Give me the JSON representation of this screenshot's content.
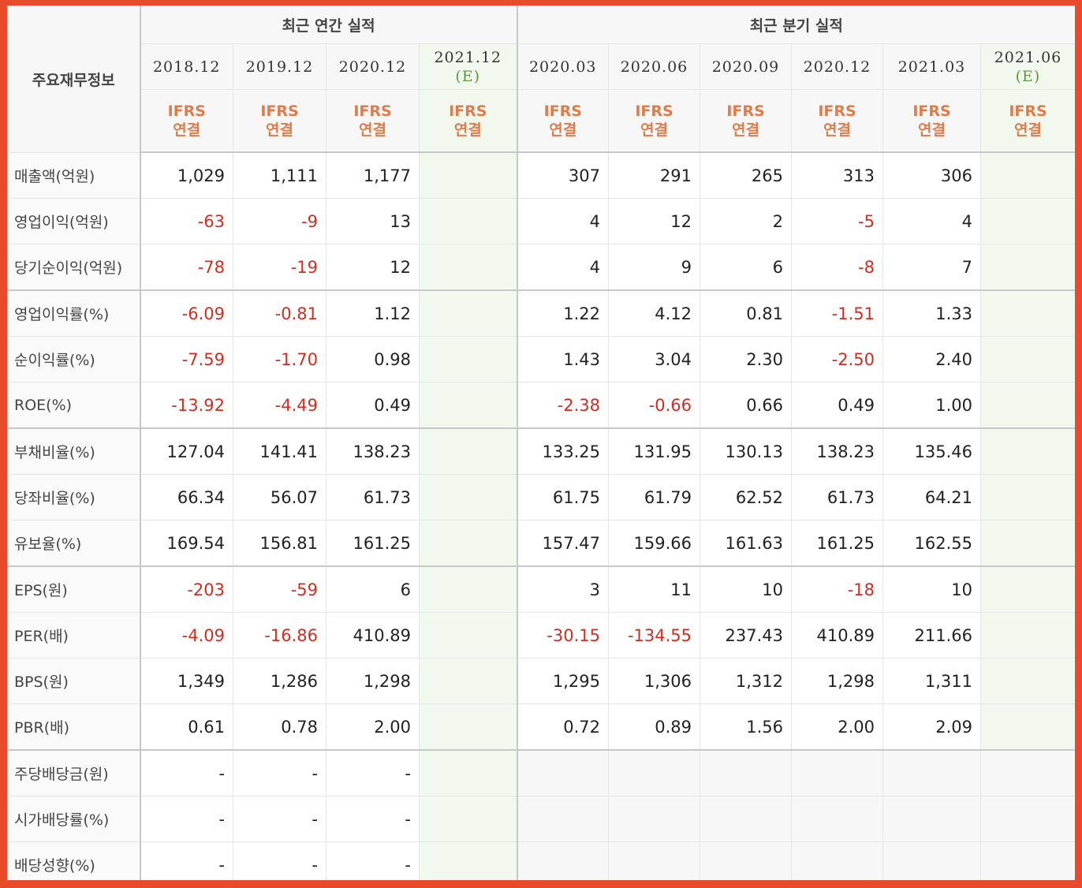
{
  "header": {
    "label": "주요재무정보",
    "annual_title": "최근 연간 실적",
    "quarterly_title": "최근 분기 실적",
    "ifrs_top": "IFRS",
    "ifrs_bottom": "연결",
    "estimate_mark": "(E)"
  },
  "annual_periods": [
    "2018.12",
    "2019.12",
    "2020.12",
    "2021.12"
  ],
  "quarterly_periods": [
    "2020.03",
    "2020.06",
    "2020.09",
    "2020.12",
    "2021.03",
    "2021.06"
  ],
  "rows": [
    {
      "label": "매출액(억원)",
      "annual": [
        "1,029",
        "1,111",
        "1,177",
        ""
      ],
      "quarterly": [
        "307",
        "291",
        "265",
        "313",
        "306",
        ""
      ]
    },
    {
      "label": "영업이익(억원)",
      "annual": [
        "-63",
        "-9",
        "13",
        ""
      ],
      "quarterly": [
        "4",
        "12",
        "2",
        "-5",
        "4",
        ""
      ]
    },
    {
      "label": "당기순이익(억원)",
      "annual": [
        "-78",
        "-19",
        "12",
        ""
      ],
      "quarterly": [
        "4",
        "9",
        "6",
        "-8",
        "7",
        ""
      ]
    },
    {
      "label": "영업이익률(%)",
      "annual": [
        "-6.09",
        "-0.81",
        "1.12",
        ""
      ],
      "quarterly": [
        "1.22",
        "4.12",
        "0.81",
        "-1.51",
        "1.33",
        ""
      ]
    },
    {
      "label": "순이익률(%)",
      "annual": [
        "-7.59",
        "-1.70",
        "0.98",
        ""
      ],
      "quarterly": [
        "1.43",
        "3.04",
        "2.30",
        "-2.50",
        "2.40",
        ""
      ]
    },
    {
      "label": "ROE(%)",
      "annual": [
        "-13.92",
        "-4.49",
        "0.49",
        ""
      ],
      "quarterly": [
        "-2.38",
        "-0.66",
        "0.66",
        "0.49",
        "1.00",
        ""
      ]
    },
    {
      "label": "부채비율(%)",
      "annual": [
        "127.04",
        "141.41",
        "138.23",
        ""
      ],
      "quarterly": [
        "133.25",
        "131.95",
        "130.13",
        "138.23",
        "135.46",
        ""
      ]
    },
    {
      "label": "당좌비율(%)",
      "annual": [
        "66.34",
        "56.07",
        "61.73",
        ""
      ],
      "quarterly": [
        "61.75",
        "61.79",
        "62.52",
        "61.73",
        "64.21",
        ""
      ]
    },
    {
      "label": "유보율(%)",
      "annual": [
        "169.54",
        "156.81",
        "161.25",
        ""
      ],
      "quarterly": [
        "157.47",
        "159.66",
        "161.63",
        "161.25",
        "162.55",
        ""
      ]
    },
    {
      "label": "EPS(원)",
      "annual": [
        "-203",
        "-59",
        "6",
        ""
      ],
      "quarterly": [
        "3",
        "11",
        "10",
        "-18",
        "10",
        ""
      ]
    },
    {
      "label": "PER(배)",
      "annual": [
        "-4.09",
        "-16.86",
        "410.89",
        ""
      ],
      "quarterly": [
        "-30.15",
        "-134.55",
        "237.43",
        "410.89",
        "211.66",
        ""
      ]
    },
    {
      "label": "BPS(원)",
      "annual": [
        "1,349",
        "1,286",
        "1,298",
        ""
      ],
      "quarterly": [
        "1,295",
        "1,306",
        "1,312",
        "1,298",
        "1,311",
        ""
      ]
    },
    {
      "label": "PBR(배)",
      "annual": [
        "0.61",
        "0.78",
        "2.00",
        ""
      ],
      "quarterly": [
        "0.72",
        "0.89",
        "1.56",
        "2.00",
        "2.09",
        ""
      ]
    },
    {
      "label": "주당배당금(원)",
      "annual": [
        "-",
        "-",
        "-",
        ""
      ],
      "quarterly": [
        "",
        "",
        "",
        "",
        "",
        ""
      ]
    },
    {
      "label": "시가배당률(%)",
      "annual": [
        "-",
        "-",
        "-",
        ""
      ],
      "quarterly": [
        "",
        "",
        "",
        "",
        "",
        ""
      ]
    },
    {
      "label": "배당성향(%)",
      "annual": [
        "-",
        "-",
        "-",
        ""
      ],
      "quarterly": [
        "",
        "",
        "",
        "",
        "",
        ""
      ]
    }
  ],
  "colors": {
    "negative": "#d42d1f",
    "ifrs": "#e07b4a",
    "estimate_mark": "#5a9a3a",
    "estimate_bg": "#f3f8ee",
    "frame": "#ea4a2c"
  }
}
